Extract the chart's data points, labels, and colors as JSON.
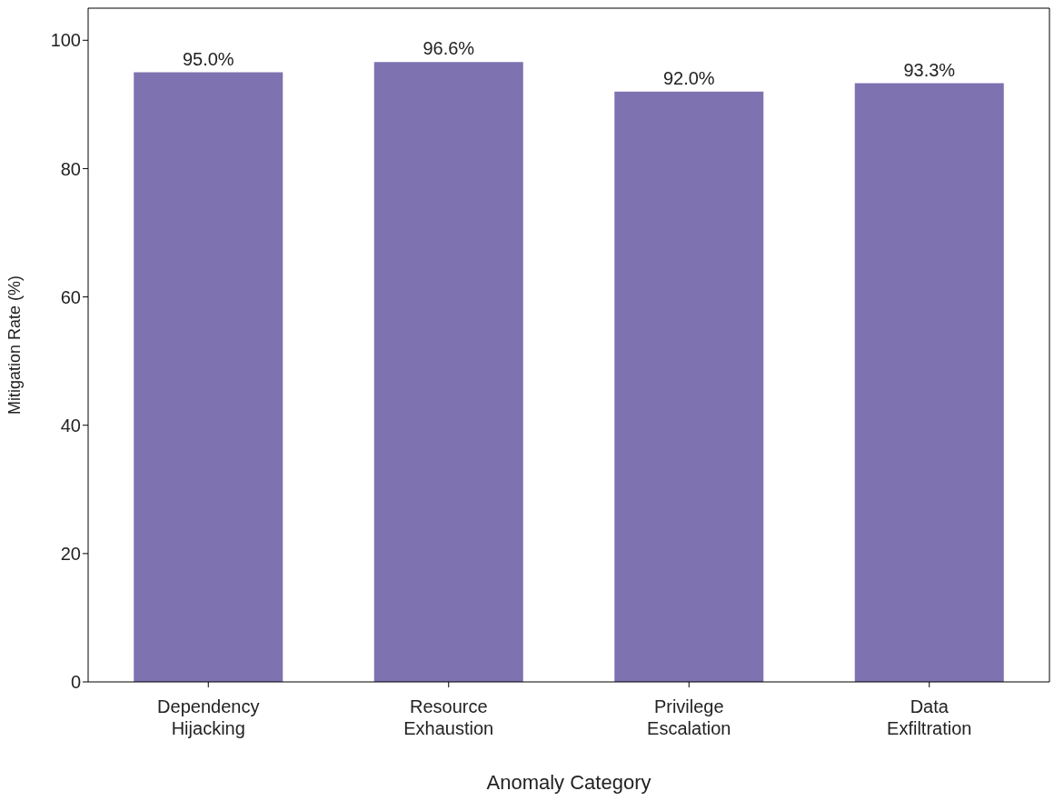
{
  "chart_data": {
    "type": "bar",
    "xlabel": "Anomaly Category",
    "ylabel": "Mitigation Rate (%)",
    "categories": [
      "Dependency Hijacking",
      "Resource Exhaustion",
      "Privilege Escalation",
      "Data Exfiltration"
    ],
    "values": [
      95.0,
      96.6,
      92.0,
      93.3
    ],
    "value_labels": [
      "95.0%",
      "96.6%",
      "92.0%",
      "93.3%"
    ],
    "color": "#7f72b0",
    "ylim": [
      0,
      105
    ],
    "yticks": [
      0,
      20,
      40,
      60,
      80,
      100
    ],
    "grid": false,
    "legend": false
  }
}
